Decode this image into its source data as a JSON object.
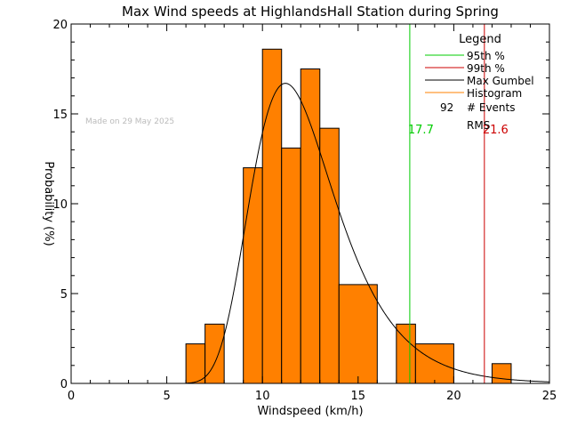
{
  "chart_data": {
    "type": "bar",
    "title": "Max Wind speeds at HighlandsHall Station during Spring",
    "xlabel": "Windspeed (km/h)",
    "ylabel": "Probability  (%)",
    "xlim": [
      0,
      25
    ],
    "ylim": [
      0,
      20
    ],
    "xticks": [
      "0",
      "5",
      "10",
      "15",
      "20",
      "25"
    ],
    "yticks": [
      "0",
      "5",
      "10",
      "15",
      "20"
    ],
    "annotation": "Made on 29 May 2025",
    "histogram": {
      "color": "#ff8000",
      "bins": [
        {
          "x0": 6,
          "x1": 7,
          "value": 2.2
        },
        {
          "x0": 7,
          "x1": 8,
          "value": 3.3
        },
        {
          "x0": 9,
          "x1": 10,
          "value": 12.0
        },
        {
          "x0": 10,
          "x1": 11,
          "value": 18.6
        },
        {
          "x0": 11,
          "x1": 12,
          "value": 13.1
        },
        {
          "x0": 12,
          "x1": 13,
          "value": 17.5
        },
        {
          "x0": 13,
          "x1": 14,
          "value": 14.2
        },
        {
          "x0": 14,
          "x1": 16,
          "value": 5.5
        },
        {
          "x0": 17,
          "x1": 18,
          "value": 3.3
        },
        {
          "x0": 18,
          "x1": 20,
          "value": 2.2
        },
        {
          "x0": 22,
          "x1": 23,
          "value": 1.1
        }
      ]
    },
    "gumbel": {
      "mode": 11.2,
      "scale": 2.2,
      "peak": 16.7,
      "color": "#000000"
    },
    "percentile_95": {
      "value": 17.7,
      "label": "17.7",
      "color": "#00cc00"
    },
    "percentile_99": {
      "value": 21.6,
      "label": "21.6",
      "color": "#cc0000"
    },
    "legend": {
      "title": "Legend",
      "position": "top-right",
      "entries": [
        {
          "label": "95th %",
          "color": "#00cc00"
        },
        {
          "label": "99th %",
          "color": "#cc0000"
        },
        {
          "label": "Max Gumbel",
          "color": "#000000"
        },
        {
          "label": "Histogram",
          "color": "#ff8000"
        }
      ],
      "events_count": "92",
      "events_label": "# Events",
      "rms_label": "RMS"
    }
  }
}
